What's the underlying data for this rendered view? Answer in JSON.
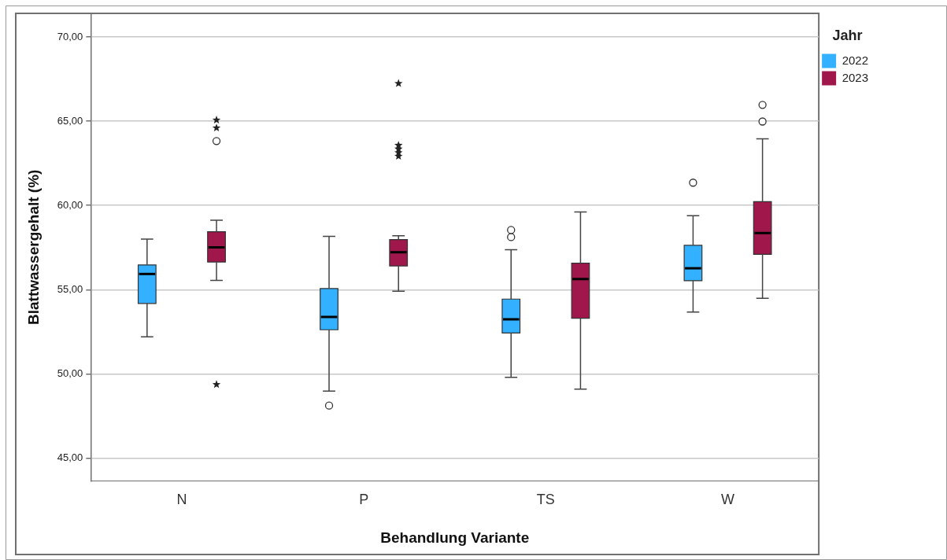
{
  "chart_data": {
    "type": "box",
    "xlabel": "Behandlung Variante",
    "ylabel": "Blattwassergehalt (%)",
    "legend_title": "Jahr",
    "legend": "right",
    "grid": "y",
    "categories": [
      "N",
      "P",
      "TS",
      "W"
    ],
    "ylim": [
      43.64,
      71.4
    ],
    "yticks": [
      {
        "value": 45,
        "label": "45,00"
      },
      {
        "value": 50,
        "label": "50,00"
      },
      {
        "value": 55,
        "label": "55,00"
      },
      {
        "value": 60,
        "label": "60,00"
      },
      {
        "value": 65,
        "label": "65,00"
      },
      {
        "value": 70,
        "label": "70,00"
      }
    ],
    "series": [
      {
        "name": "2022",
        "color": "#33b0ff",
        "boxes": [
          {
            "low": 52.2,
            "q1": 54.18,
            "median": 55.93,
            "q3": 56.47,
            "high": 58.0
          },
          {
            "low": 48.98,
            "q1": 52.62,
            "median": 53.38,
            "q3": 55.07,
            "high": 58.17,
            "outliers": [
              48.12
            ]
          },
          {
            "low": 49.79,
            "q1": 52.43,
            "median": 53.24,
            "q3": 54.44,
            "high": 57.37,
            "outliers": [
              58.12,
              58.54
            ]
          },
          {
            "low": 53.67,
            "q1": 55.53,
            "median": 56.27,
            "q3": 57.63,
            "high": 59.39,
            "outliers": [
              61.35
            ]
          }
        ]
      },
      {
        "name": "2023",
        "color": "#a0174c",
        "boxes": [
          {
            "low": 55.55,
            "q1": 56.64,
            "median": 57.51,
            "q3": 58.44,
            "high": 59.12,
            "outliers": [
              63.82,
              64.6,
              65.07,
              49.37
            ]
          },
          {
            "low": 54.91,
            "q1": 56.41,
            "median": 57.22,
            "q3": 57.97,
            "high": 58.2,
            "outliers": [
              62.92,
              63.13,
              63.35,
              63.57,
              67.24
            ]
          },
          {
            "low": 49.1,
            "q1": 53.3,
            "median": 55.63,
            "q3": 56.57,
            "high": 59.61
          },
          {
            "low": 54.49,
            "q1": 57.1,
            "median": 58.36,
            "q3": 60.22,
            "high": 63.95,
            "outliers": [
              64.98,
              65.97
            ]
          }
        ]
      }
    ]
  }
}
